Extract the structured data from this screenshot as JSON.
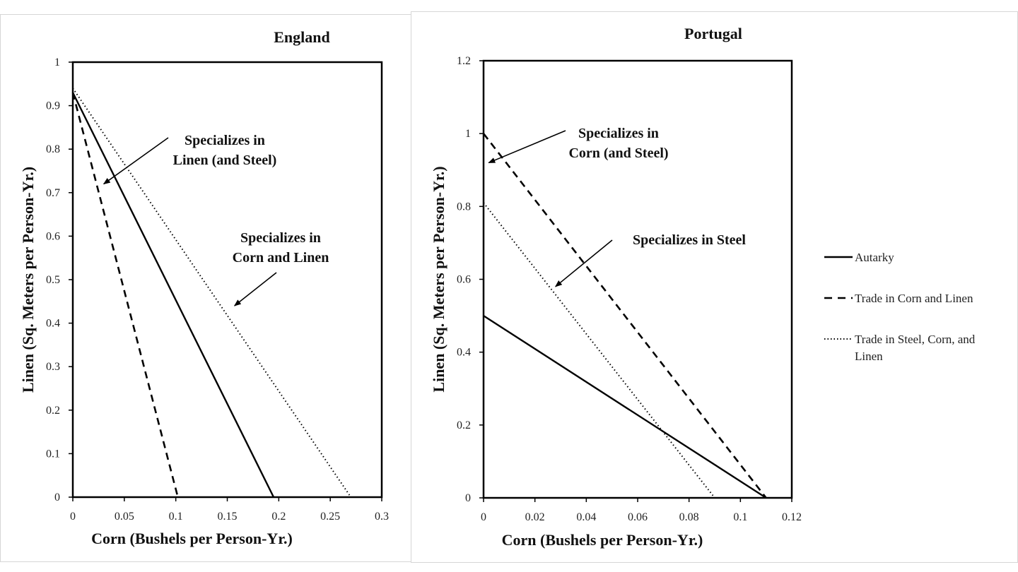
{
  "chart_data": [
    {
      "type": "line",
      "title": "England",
      "xlabel": "Corn (Bushels per Person-Yr.)",
      "ylabel": "Linen (Sq. Meters per Person-Yr.)",
      "xlim": [
        0,
        0.3
      ],
      "ylim": [
        0,
        1
      ],
      "xticks": [
        "0",
        "0.05",
        "0.1",
        "0.15",
        "0.2",
        "0.25",
        "0.3"
      ],
      "yticks": [
        "0",
        "0.1",
        "0.2",
        "0.3",
        "0.4",
        "0.5",
        "0.6",
        "0.7",
        "0.8",
        "0.9",
        "1"
      ],
      "series": [
        {
          "name": "Autarky",
          "style": "solid",
          "x": [
            0,
            0.195
          ],
          "y": [
            0.93,
            0
          ]
        },
        {
          "name": "Trade in Corn and Linen",
          "style": "dashed",
          "x": [
            0,
            0.102
          ],
          "y": [
            0.93,
            0
          ]
        },
        {
          "name": "Trade in Steel, Corn, and Linen",
          "style": "dotted",
          "x": [
            0,
            0.27
          ],
          "y": [
            0.94,
            0
          ]
        }
      ],
      "annotations": [
        {
          "lines": [
            "Specializes in",
            "Linen (and Steel)"
          ],
          "arrow_to": [
            0.03,
            0.72
          ]
        },
        {
          "lines": [
            "Specializes in",
            "Corn and Linen"
          ],
          "arrow_to": [
            0.157,
            0.44
          ]
        }
      ]
    },
    {
      "type": "line",
      "title": "Portugal",
      "xlabel": "Corn (Bushels per Person-Yr.)",
      "ylabel": "Linen (Sq. Meters per Person-Yr.)",
      "xlim": [
        0,
        0.12
      ],
      "ylim": [
        0,
        1.2
      ],
      "xticks": [
        "0",
        "0.02",
        "0.04",
        "0.06",
        "0.08",
        "0.1",
        "0.12"
      ],
      "yticks": [
        "0",
        "0.2",
        "0.4",
        "0.6",
        "0.8",
        "1",
        "1.2"
      ],
      "series": [
        {
          "name": "Autarky",
          "style": "solid",
          "x": [
            0,
            0.11
          ],
          "y": [
            0.5,
            0
          ]
        },
        {
          "name": "Trade in Corn and Linen",
          "style": "dashed",
          "x": [
            0,
            0.11
          ],
          "y": [
            1.0,
            0
          ]
        },
        {
          "name": "Trade in Steel, Corn, and Linen",
          "style": "dotted",
          "x": [
            0,
            0.09
          ],
          "y": [
            0.81,
            0
          ]
        }
      ],
      "annotations": [
        {
          "lines": [
            "Specializes in",
            "Corn (and Steel)"
          ],
          "arrow_to": [
            0.002,
            0.92
          ]
        },
        {
          "lines": [
            "Specializes in Steel"
          ],
          "arrow_to": [
            0.028,
            0.58
          ]
        }
      ]
    }
  ],
  "legend": {
    "position": "right",
    "items": [
      {
        "style": "solid",
        "label": "Autarky"
      },
      {
        "style": "dashed",
        "label": "Trade in Corn and Linen"
      },
      {
        "style": "dotted",
        "label_lines": [
          "Trade in Steel, Corn, and",
          "Linen"
        ]
      }
    ]
  },
  "colors": {
    "lines": "#000000",
    "panel_border": "#d6d6d6"
  }
}
